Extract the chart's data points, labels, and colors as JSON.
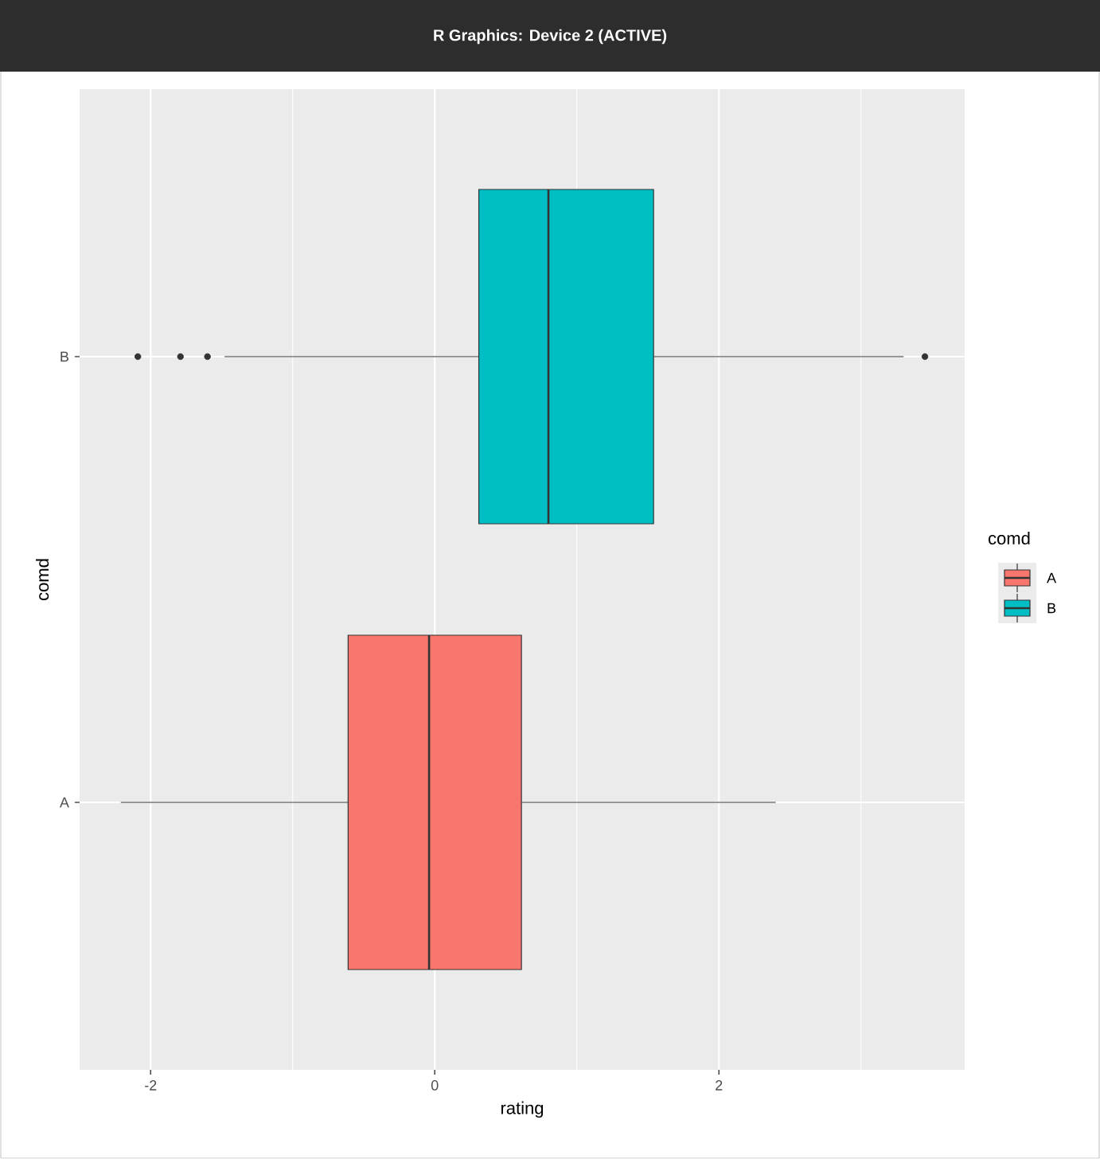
{
  "chart_data": {
    "type": "box",
    "orientation": "horizontal",
    "categories": [
      "B",
      "A"
    ],
    "xlabel": "rating",
    "ylabel": "comd",
    "legend_title": "comd",
    "legend": "right",
    "grid": true,
    "xlim": [
      -2.5,
      3.73
    ],
    "xticks": [
      -2,
      0,
      2
    ],
    "series": [
      {
        "name": "A",
        "color": "#f8766d",
        "boxes": [
          null,
          {
            "low": -2.21,
            "q1": -0.61,
            "median": -0.04,
            "q3": 0.61,
            "high": 2.4
          }
        ]
      },
      {
        "name": "B",
        "color": "#00bfc4",
        "boxes": [
          {
            "low": -1.48,
            "q1": 0.31,
            "median": 0.8,
            "q3": 1.54,
            "high": 3.3,
            "outliers": [
              -2.09,
              -1.79,
              -1.6,
              3.45
            ]
          },
          null
        ]
      }
    ],
    "annotations": [
      "R Graphics: Device 2 (ACTIVE)"
    ]
  }
}
